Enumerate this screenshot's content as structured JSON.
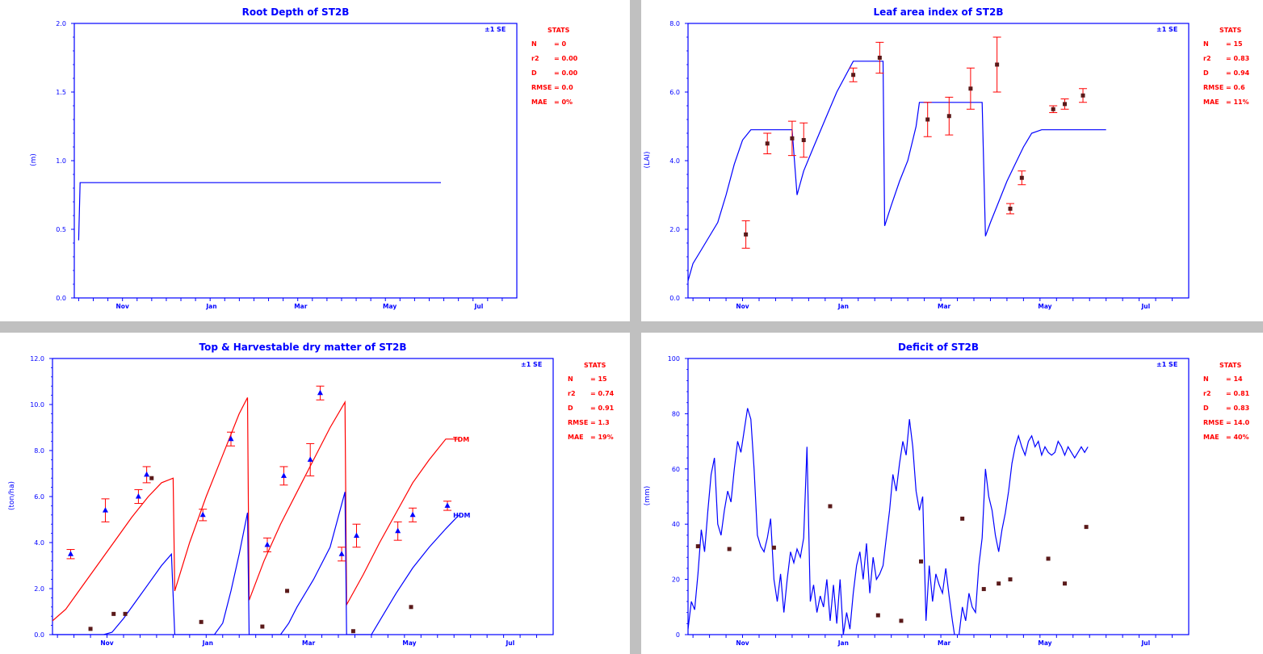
{
  "colors": {
    "sim": "#0000ff",
    "obs": "#ff0000",
    "marker": "#5a1a1a",
    "axis": "#0000ff",
    "divider": "#c0c0c0"
  },
  "chart_data": [
    {
      "type": "line",
      "title": "Root Depth of ST2B",
      "ylabel": "(m)",
      "ylim": [
        0,
        2.0
      ],
      "yticks": [
        "0.0",
        "0.5",
        "1.0",
        "1.5",
        "2.0"
      ],
      "xlim": [
        -28,
        275
      ],
      "month_labels": [
        "Nov",
        "Jan",
        "Mar",
        "May",
        "Jul"
      ],
      "se_label": "±1 SE",
      "stats_header": "STATS",
      "stats": [
        [
          "N",
          "= 0"
        ],
        [
          "r2",
          "= 0.00"
        ],
        [
          "D",
          "= 0.00"
        ],
        [
          "RMSE",
          "= 0.0"
        ],
        [
          "MAE",
          "= 0%"
        ]
      ],
      "series": [
        {
          "style": "sim",
          "x": [
            -25,
            -24,
            -24,
            223
          ],
          "y": [
            0.42,
            0.84,
            0.84,
            0.84
          ]
        }
      ],
      "observed": []
    },
    {
      "type": "line",
      "title": "Leaf area index of ST2B",
      "ylabel": "(LAI)",
      "ylim": [
        0,
        8.0
      ],
      "yticks": [
        "0.0",
        "2.0",
        "4.0",
        "6.0",
        "8.0"
      ],
      "xlim": [
        -28,
        275
      ],
      "month_labels": [
        "Nov",
        "Jan",
        "Mar",
        "May",
        "Jul"
      ],
      "se_label": "±1 SE",
      "stats_header": "STATS",
      "stats": [
        [
          "N",
          "= 15"
        ],
        [
          "r2",
          "= 0.83"
        ],
        [
          "D",
          "= 0.94"
        ],
        [
          "RMSE",
          "= 0.6"
        ],
        [
          "MAE",
          "= 11%"
        ]
      ],
      "series": [
        {
          "style": "sim",
          "x": [
            -28,
            -25,
            -20,
            -15,
            -10,
            -5,
            0,
            5,
            10,
            15,
            30,
            35,
            38,
            42,
            48,
            55,
            62,
            72,
            90,
            91,
            95,
            100,
            105,
            108,
            110,
            112,
            150,
            152,
            155,
            160,
            165,
            170,
            175,
            180,
            186,
            225
          ],
          "y": [
            0.5,
            1.0,
            1.4,
            1.8,
            2.2,
            3.0,
            3.9,
            4.6,
            4.9,
            4.9,
            4.9,
            4.9,
            3.0,
            3.7,
            4.4,
            5.2,
            6.0,
            6.9,
            6.9,
            2.1,
            2.7,
            3.4,
            4.0,
            4.6,
            5.0,
            5.7,
            5.7,
            1.8,
            2.2,
            2.8,
            3.4,
            3.9,
            4.4,
            4.8,
            4.9,
            4.9
          ]
        }
      ],
      "observed": [
        {
          "x": 7,
          "y": 1.85,
          "se": 0.4
        },
        {
          "x": 20,
          "y": 4.5,
          "se": 0.3
        },
        {
          "x": 35,
          "y": 4.65,
          "se": 0.5
        },
        {
          "x": 42,
          "y": 4.6,
          "se": 0.5
        },
        {
          "x": 72,
          "y": 6.5,
          "se": 0.2
        },
        {
          "x": 88,
          "y": 7.0,
          "se": 0.45
        },
        {
          "x": 117,
          "y": 5.2,
          "se": 0.5
        },
        {
          "x": 130,
          "y": 5.3,
          "se": 0.55
        },
        {
          "x": 143,
          "y": 6.1,
          "se": 0.6
        },
        {
          "x": 159,
          "y": 6.8,
          "se": 0.8
        },
        {
          "x": 167,
          "y": 2.6,
          "se": 0.15
        },
        {
          "x": 174,
          "y": 3.5,
          "se": 0.2
        },
        {
          "x": 193,
          "y": 5.5,
          "se": 0.1
        },
        {
          "x": 200,
          "y": 5.65,
          "se": 0.15
        },
        {
          "x": 211,
          "y": 5.9,
          "se": 0.2
        }
      ]
    },
    {
      "type": "line",
      "title": "Top & Harvestable dry matter of ST2B",
      "ylabel": "(ton/ha)",
      "ylim": [
        0,
        12.0
      ],
      "yticks": [
        "0.0",
        "2.0",
        "4.0",
        "6.0",
        "8.0",
        "10.0",
        "12.0"
      ],
      "xlim": [
        -28,
        275
      ],
      "month_labels": [
        "Nov",
        "Jan",
        "Mar",
        "May",
        "Jul"
      ],
      "se_label": "±1 SE",
      "stats_header": "STATS",
      "stats": [
        [
          "N",
          "= 15"
        ],
        [
          "r2",
          "= 0.74"
        ],
        [
          "D",
          "= 0.91"
        ],
        [
          "RMSE",
          "= 1.3"
        ],
        [
          "MAE",
          "= 19%"
        ]
      ],
      "series_labels": [
        {
          "text": "TDM",
          "x": 213,
          "y": 8.5,
          "style": "obs"
        },
        {
          "text": "HDM",
          "x": 213,
          "y": 5.2,
          "style": "sim"
        }
      ],
      "series": [
        {
          "style": "obs",
          "x": [
            -28,
            -20,
            -10,
            0,
            10,
            20,
            30,
            38,
            45,
            46,
            55,
            65,
            75,
            85,
            90,
            91,
            100,
            110,
            120,
            130,
            140,
            149,
            150,
            160,
            170,
            180,
            190,
            200,
            210,
            218
          ],
          "y": [
            0.6,
            1.1,
            2.1,
            3.1,
            4.1,
            5.1,
            6.0,
            6.6,
            6.8,
            1.9,
            4.0,
            6.0,
            7.8,
            9.6,
            10.3,
            1.5,
            3.2,
            4.8,
            6.2,
            7.6,
            9.0,
            10.1,
            1.3,
            2.6,
            4.0,
            5.3,
            6.6,
            7.6,
            8.5,
            8.5
          ]
        }
      ],
      "series2": [
        {
          "style": "sim",
          "x": [
            -28,
            3,
            8,
            15,
            22,
            30,
            38,
            44,
            46,
            70,
            75,
            80,
            85,
            90,
            91,
            110,
            115,
            120,
            130,
            140,
            149,
            150,
            165,
            170,
            180,
            190,
            200,
            210,
            218
          ],
          "y": [
            0,
            0,
            0.1,
            0.7,
            1.4,
            2.2,
            3.0,
            3.5,
            0,
            0,
            0.5,
            1.9,
            3.5,
            5.3,
            0,
            0,
            0.5,
            1.2,
            2.4,
            3.8,
            6.2,
            0,
            0,
            0.6,
            1.8,
            2.9,
            3.8,
            4.6,
            5.2
          ]
        }
      ],
      "observed": [
        {
          "x": -17,
          "y": 3.5,
          "se": 0.2
        },
        {
          "x": -5,
          "y": 0.25
        },
        {
          "x": 4,
          "y": 5.4,
          "se": 0.5
        },
        {
          "x": 9,
          "y": 0.9
        },
        {
          "x": 16,
          "y": 0.9
        },
        {
          "x": 24,
          "y": 6.0,
          "se": 0.3
        },
        {
          "x": 29,
          "y": 6.95,
          "se": 0.35
        },
        {
          "x": 32,
          "y": 6.8
        },
        {
          "x": 62,
          "y": 0.55
        },
        {
          "x": 63,
          "y": 5.2,
          "se": 0.25
        },
        {
          "x": 80,
          "y": 8.5,
          "se": 0.3
        },
        {
          "x": 99,
          "y": 0.35
        },
        {
          "x": 102,
          "y": 3.9,
          "se": 0.3
        },
        {
          "x": 112,
          "y": 6.9,
          "se": 0.4
        },
        {
          "x": 114,
          "y": 1.9
        },
        {
          "x": 128,
          "y": 7.6,
          "se": 0.7
        },
        {
          "x": 134,
          "y": 10.5,
          "se": 0.3
        },
        {
          "x": 154,
          "y": 0.15
        },
        {
          "x": 147,
          "y": 3.5,
          "se": 0.3
        },
        {
          "x": 156,
          "y": 4.3,
          "se": 0.5
        },
        {
          "x": 181,
          "y": 4.5,
          "se": 0.4
        },
        {
          "x": 190,
          "y": 5.2,
          "se": 0.3
        },
        {
          "x": 189,
          "y": 1.2
        },
        {
          "x": 211,
          "y": 5.6,
          "se": 0.2
        }
      ]
    },
    {
      "type": "line",
      "title": "Deficit of ST2B",
      "ylabel": "(mm)",
      "ylim": [
        0,
        100
      ],
      "yticks": [
        "0",
        "20",
        "40",
        "60",
        "80",
        "100"
      ],
      "xlim": [
        -28,
        275
      ],
      "month_labels": [
        "Nov",
        "Jan",
        "Mar",
        "May",
        "Jul"
      ],
      "se_label": "±1 SE",
      "stats_header": "STATS",
      "stats": [
        [
          "N",
          "= 14"
        ],
        [
          "r2",
          "= 0.81"
        ],
        [
          "D",
          "= 0.83"
        ],
        [
          "RMSE",
          "= 14.0"
        ],
        [
          "MAE",
          "= 40%"
        ]
      ],
      "series": [
        {
          "style": "sim",
          "x": [
            -28,
            -26,
            -24,
            -22,
            -20,
            -18,
            -16,
            -14,
            -12,
            -10,
            -8,
            -6,
            -4,
            -2,
            0,
            2,
            4,
            6,
            8,
            10,
            12,
            14,
            16,
            18,
            20,
            22,
            24,
            26,
            28,
            30,
            32,
            34,
            36,
            38,
            40,
            42,
            44,
            46,
            48,
            50,
            52,
            54,
            56,
            58,
            60,
            62,
            64,
            66,
            68,
            70,
            72,
            74,
            76,
            78,
            80,
            82,
            84,
            86,
            88,
            90,
            92,
            94,
            96,
            98,
            100,
            102,
            104,
            106,
            108,
            110,
            112,
            114,
            116,
            118,
            120,
            122,
            124,
            126,
            128,
            130,
            132,
            134,
            136,
            138,
            140,
            142,
            144,
            146,
            148,
            150,
            152,
            154,
            156,
            158,
            160,
            162,
            164,
            166,
            168,
            170,
            172,
            174,
            176,
            178,
            180,
            182,
            184,
            186,
            188,
            190,
            192,
            194,
            196,
            198,
            200,
            202,
            204,
            206,
            208,
            210,
            212,
            214
          ],
          "y": [
            2,
            12,
            9,
            22,
            38,
            30,
            45,
            58,
            64,
            40,
            36,
            45,
            52,
            48,
            60,
            70,
            66,
            74,
            82,
            78,
            60,
            36,
            32,
            30,
            35,
            42,
            20,
            12,
            22,
            8,
            20,
            30,
            26,
            31,
            28,
            35,
            68,
            12,
            18,
            8,
            14,
            10,
            20,
            5,
            18,
            4,
            20,
            0,
            8,
            2,
            15,
            25,
            30,
            20,
            33,
            15,
            28,
            20,
            22,
            25,
            35,
            45,
            58,
            52,
            62,
            70,
            65,
            78,
            68,
            52,
            45,
            50,
            5,
            25,
            12,
            22,
            18,
            15,
            24,
            14,
            5,
            -3,
            0,
            10,
            5,
            15,
            10,
            8,
            25,
            35,
            60,
            50,
            45,
            36,
            30,
            38,
            44,
            52,
            62,
            68,
            72,
            68,
            65,
            70,
            72,
            68,
            70,
            65,
            68,
            66,
            65,
            66,
            70,
            68,
            65,
            68,
            66,
            64,
            66,
            68,
            66,
            68
          ]
        }
      ],
      "observed": [
        {
          "x": -22,
          "y": 32
        },
        {
          "x": -3,
          "y": 31
        },
        {
          "x": 24,
          "y": 31.5
        },
        {
          "x": 58,
          "y": 46.5
        },
        {
          "x": 87,
          "y": 7
        },
        {
          "x": 101,
          "y": 5
        },
        {
          "x": 113,
          "y": 26.5
        },
        {
          "x": 138,
          "y": 42
        },
        {
          "x": 151,
          "y": 16.5
        },
        {
          "x": 160,
          "y": 18.5
        },
        {
          "x": 167,
          "y": 20
        },
        {
          "x": 190,
          "y": 27.5
        },
        {
          "x": 200,
          "y": 18.5
        },
        {
          "x": 213,
          "y": 39
        }
      ]
    }
  ]
}
